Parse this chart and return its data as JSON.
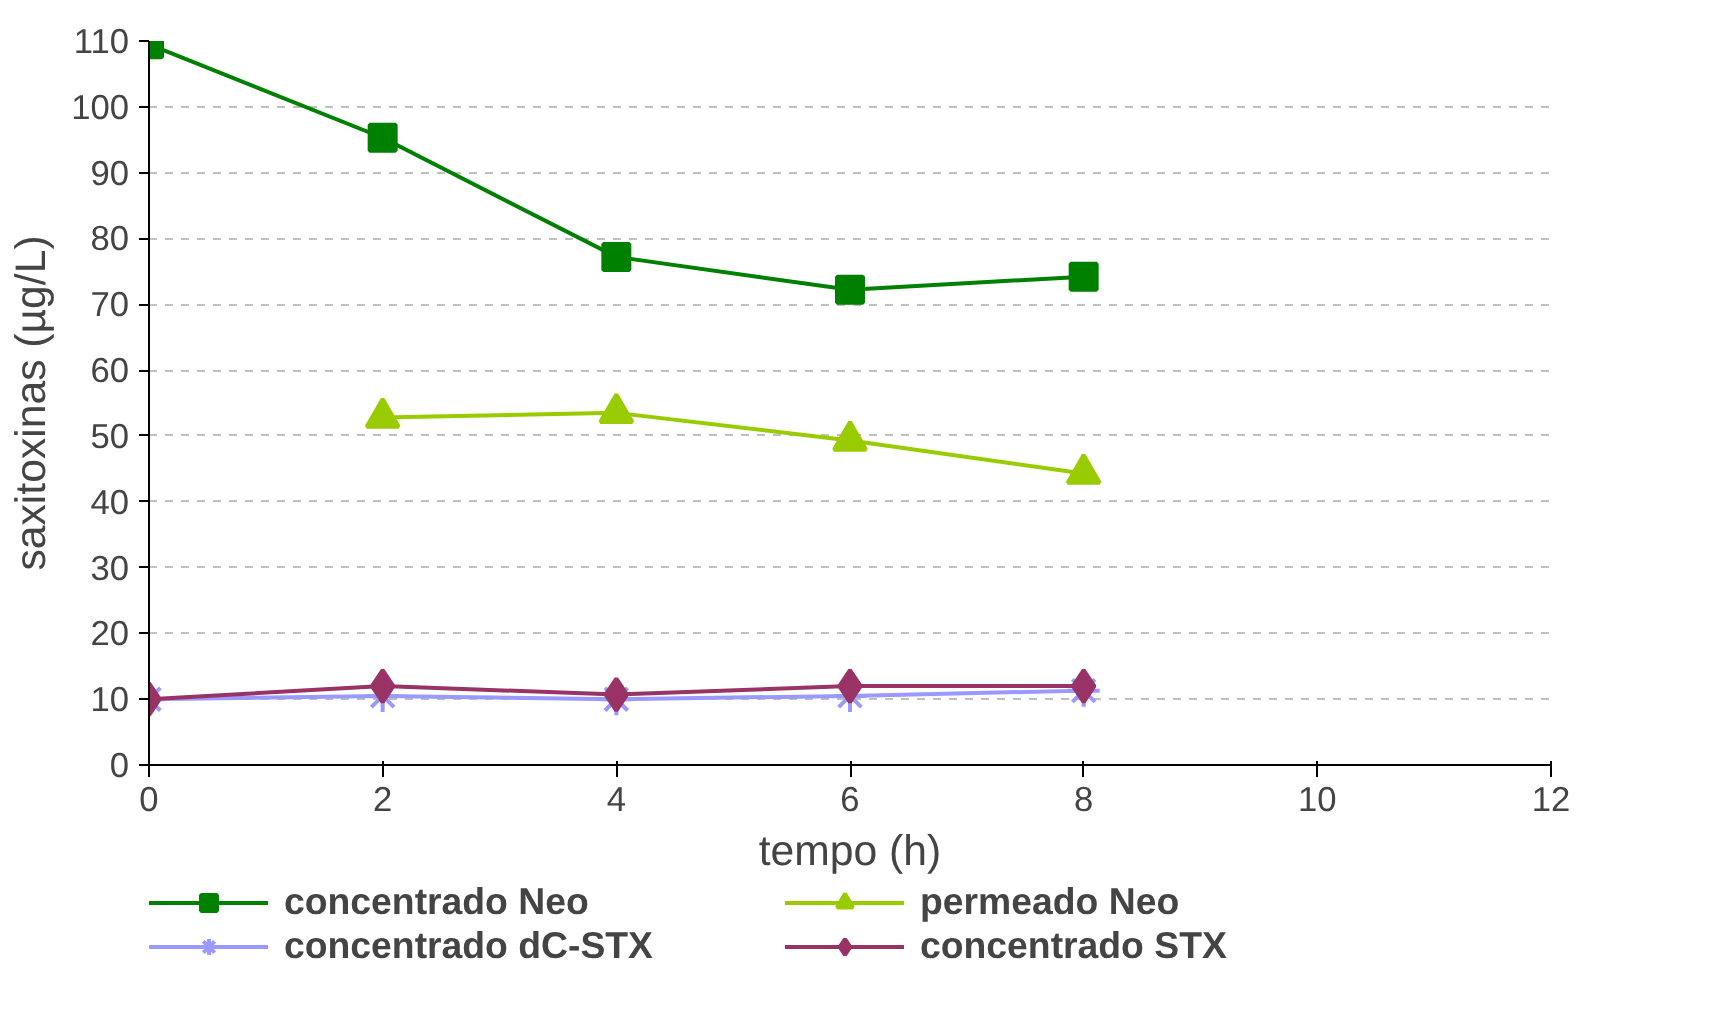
{
  "chart_data": {
    "type": "line",
    "xlabel": "tempo (h)",
    "ylabel": "saxitoxinas (µg/L)",
    "x": [
      0,
      2,
      4,
      6,
      8
    ],
    "series": [
      {
        "name": "concentrado Neo",
        "color": "#008000",
        "marker": "square",
        "values": [
          109.5,
          95.3,
          77.2,
          72.2,
          74.2
        ]
      },
      {
        "name": "permeado Neo",
        "color": "#99cc00",
        "marker": "triangle",
        "values": [
          null,
          52.8,
          53.5,
          49.3,
          44.3
        ]
      },
      {
        "name": "concentrado dC-STX",
        "color": "#9999ff",
        "marker": "cross",
        "values": [
          10,
          10.5,
          10,
          10.5,
          11.3
        ]
      },
      {
        "name": "concentrado STX",
        "color": "#993366",
        "marker": "diamond",
        "values": [
          10,
          12,
          10.7,
          12,
          12
        ]
      }
    ],
    "xlim": [
      0,
      12
    ],
    "ylim": [
      0,
      110
    ],
    "xticks": [
      0,
      2,
      4,
      6,
      8,
      10,
      12
    ],
    "yticks": [
      0,
      10,
      20,
      30,
      40,
      50,
      60,
      70,
      80,
      90,
      100,
      110
    ],
    "grid": "y",
    "legend": "bottom"
  }
}
